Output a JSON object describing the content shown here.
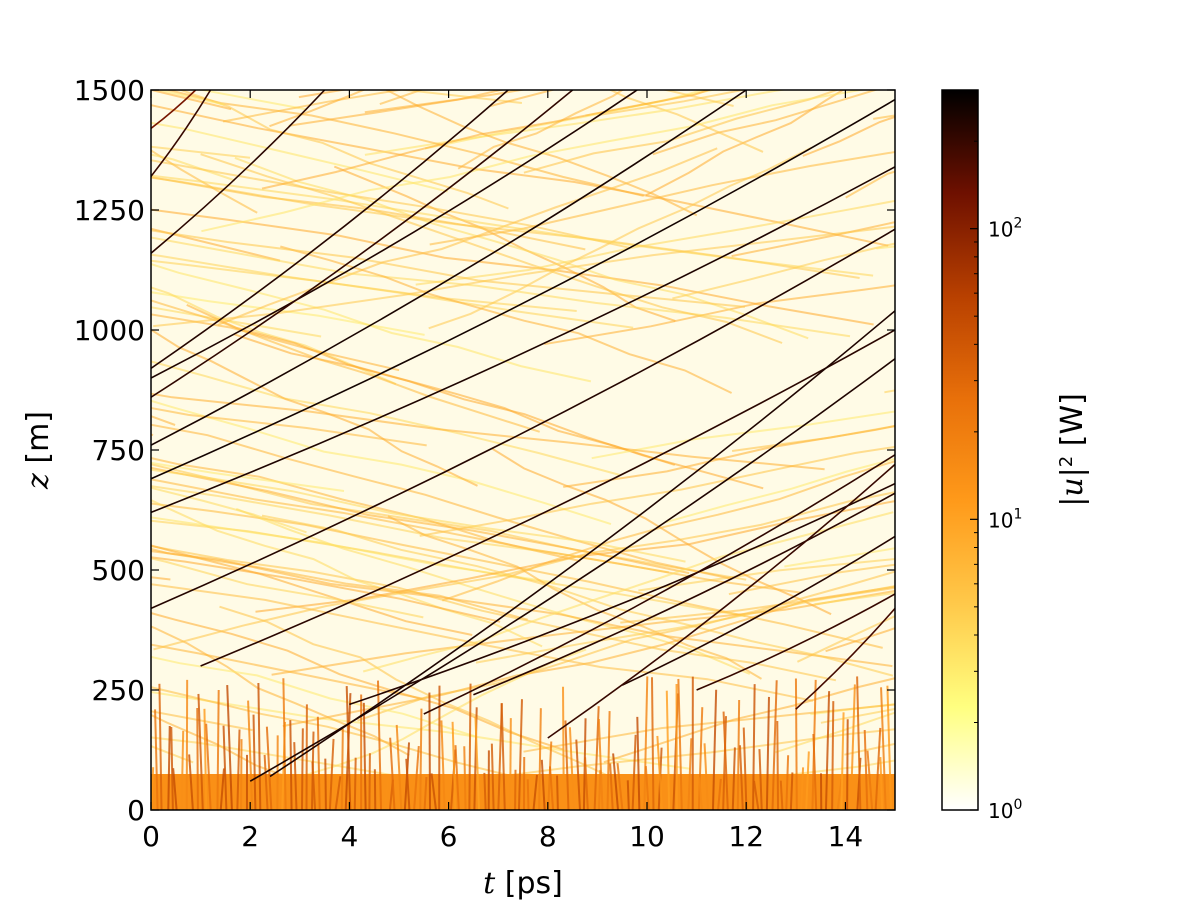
{
  "chart_data": {
    "type": "heatmap",
    "title": "",
    "x": {
      "variable": "t",
      "unit": " [ps]",
      "range": [
        0,
        15
      ],
      "ticks": [
        0,
        2,
        4,
        6,
        8,
        10,
        12,
        14
      ],
      "tick_labels": [
        "0",
        "2",
        "4",
        "6",
        "8",
        "10",
        "12",
        "14"
      ]
    },
    "y": {
      "variable": "z",
      "unit": " [m]",
      "range": [
        0,
        1500
      ],
      "ticks": [
        0,
        250,
        500,
        750,
        1000,
        1250,
        1500
      ],
      "tick_labels": [
        "0",
        "250",
        "500",
        "750",
        "1000",
        "1250",
        "1500"
      ]
    },
    "colorbar": {
      "scale": "log",
      "range": [
        1,
        300
      ],
      "ticks": [
        1,
        10,
        100
      ],
      "tick_labels": [
        {
          "base": "10",
          "exp": "0"
        },
        {
          "base": "10",
          "exp": "1"
        },
        {
          "base": "10",
          "exp": "2"
        }
      ],
      "label_var": "|u|",
      "label_exp": "2",
      "label_unit": " [W]",
      "colormap": [
        "#ffffff",
        "#ffff80",
        "#ffc94a",
        "#ff9a1a",
        "#e8700a",
        "#b84000",
        "#6e1000",
        "#000000"
      ]
    },
    "grid": false,
    "dense_region_z_max": 75,
    "trajectories": [
      {
        "t0": 0.0,
        "z0": 1320,
        "t1": 1.2,
        "z1": 1500,
        "intensity": 200
      },
      {
        "t0": 0.0,
        "z0": 1160,
        "t1": 3.5,
        "z1": 1500,
        "intensity": 220
      },
      {
        "t0": 0.0,
        "z0": 1420,
        "t1": 0.9,
        "z1": 1500,
        "intensity": 120
      },
      {
        "t0": 0.0,
        "z0": 920,
        "t1": 7.2,
        "z1": 1500,
        "intensity": 230
      },
      {
        "t0": 0.0,
        "z0": 900,
        "t1": 9.8,
        "z1": 1500,
        "intensity": 240
      },
      {
        "t0": 0.0,
        "z0": 760,
        "t1": 12.0,
        "z1": 1500,
        "intensity": 250
      },
      {
        "t0": 0.0,
        "z0": 690,
        "t1": 15.0,
        "z1": 1480,
        "intensity": 260
      },
      {
        "t0": 0.0,
        "z0": 620,
        "t1": 15.0,
        "z1": 1340,
        "intensity": 240
      },
      {
        "t0": 0.0,
        "z0": 420,
        "t1": 15.0,
        "z1": 1210,
        "intensity": 230
      },
      {
        "t0": 1.0,
        "z0": 300,
        "t1": 15.0,
        "z1": 1000,
        "intensity": 220
      },
      {
        "t0": 2.0,
        "z0": 60,
        "t1": 15.0,
        "z1": 940,
        "intensity": 240
      },
      {
        "t0": 4.0,
        "z0": 220,
        "t1": 15.0,
        "z1": 680,
        "intensity": 230
      },
      {
        "t0": 5.5,
        "z0": 200,
        "t1": 15.0,
        "z1": 740,
        "intensity": 210
      },
      {
        "t0": 6.5,
        "z0": 240,
        "t1": 15.0,
        "z1": 660,
        "intensity": 220
      },
      {
        "t0": 9.5,
        "z0": 260,
        "t1": 15.0,
        "z1": 570,
        "intensity": 230
      },
      {
        "t0": 11.0,
        "z0": 250,
        "t1": 15.0,
        "z1": 450,
        "intensity": 200
      },
      {
        "t0": 13.0,
        "z0": 210,
        "t1": 15.0,
        "z1": 420,
        "intensity": 180
      },
      {
        "t0": 2.4,
        "z0": 70,
        "t1": 15.0,
        "z1": 1040,
        "intensity": 240
      },
      {
        "t0": 0.0,
        "z0": 860,
        "t1": 8.5,
        "z1": 1500,
        "intensity": 210
      },
      {
        "t0": 8.0,
        "z0": 150,
        "t1": 15.0,
        "z1": 720,
        "intensity": 200
      }
    ]
  }
}
